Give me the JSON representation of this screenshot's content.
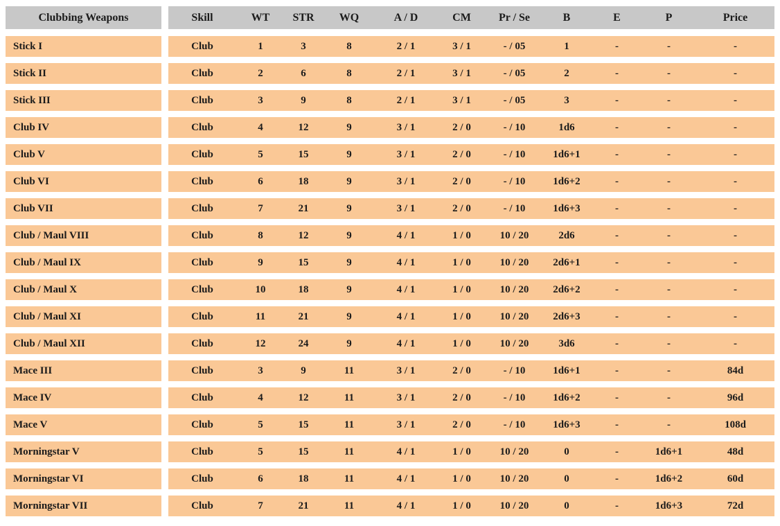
{
  "colors": {
    "page_bg": "#ffffff",
    "header_bg": "#c8c8c8",
    "row_bg": "#fac896",
    "text": "#1b1b1b"
  },
  "table": {
    "name_header": "Clubbing Weapons",
    "columns": [
      {
        "key": "skill",
        "label": "Skill"
      },
      {
        "key": "wt",
        "label": "WT"
      },
      {
        "key": "str",
        "label": "STR"
      },
      {
        "key": "wq",
        "label": "WQ"
      },
      {
        "key": "ad",
        "label": "A / D"
      },
      {
        "key": "cm",
        "label": "CM"
      },
      {
        "key": "prse",
        "label": "Pr / Se"
      },
      {
        "key": "b",
        "label": "B"
      },
      {
        "key": "e",
        "label": "E"
      },
      {
        "key": "p",
        "label": "P"
      },
      {
        "key": "price",
        "label": "Price"
      }
    ],
    "rows": [
      {
        "name": "Stick I",
        "values": [
          "Club",
          "1",
          "3",
          "8",
          "2 / 1",
          "3 / 1",
          "- / 05",
          "1",
          "-",
          "-",
          "-"
        ]
      },
      {
        "name": "Stick II",
        "values": [
          "Club",
          "2",
          "6",
          "8",
          "2 / 1",
          "3 / 1",
          "- / 05",
          "2",
          "-",
          "-",
          "-"
        ]
      },
      {
        "name": "Stick III",
        "values": [
          "Club",
          "3",
          "9",
          "8",
          "2 / 1",
          "3 / 1",
          "- / 05",
          "3",
          "-",
          "-",
          "-"
        ]
      },
      {
        "name": "Club IV",
        "values": [
          "Club",
          "4",
          "12",
          "9",
          "3 / 1",
          "2 / 0",
          "- / 10",
          "1d6",
          "-",
          "-",
          "-"
        ]
      },
      {
        "name": "Club V",
        "values": [
          "Club",
          "5",
          "15",
          "9",
          "3 / 1",
          "2 / 0",
          "- / 10",
          "1d6+1",
          "-",
          "-",
          "-"
        ]
      },
      {
        "name": "Club VI",
        "values": [
          "Club",
          "6",
          "18",
          "9",
          "3 / 1",
          "2 / 0",
          "- / 10",
          "1d6+2",
          "-",
          "-",
          "-"
        ]
      },
      {
        "name": "Club VII",
        "values": [
          "Club",
          "7",
          "21",
          "9",
          "3 / 1",
          "2 / 0",
          "- / 10",
          "1d6+3",
          "-",
          "-",
          "-"
        ]
      },
      {
        "name": "Club / Maul VIII",
        "values": [
          "Club",
          "8",
          "12",
          "9",
          "4 / 1",
          "1 / 0",
          "10 / 20",
          "2d6",
          "-",
          "-",
          "-"
        ]
      },
      {
        "name": "Club / Maul IX",
        "values": [
          "Club",
          "9",
          "15",
          "9",
          "4 / 1",
          "1 / 0",
          "10 / 20",
          "2d6+1",
          "-",
          "-",
          "-"
        ]
      },
      {
        "name": "Club / Maul X",
        "values": [
          "Club",
          "10",
          "18",
          "9",
          "4 / 1",
          "1 / 0",
          "10 / 20",
          "2d6+2",
          "-",
          "-",
          "-"
        ]
      },
      {
        "name": "Club / Maul XI",
        "values": [
          "Club",
          "11",
          "21",
          "9",
          "4 / 1",
          "1 / 0",
          "10 / 20",
          "2d6+3",
          "-",
          "-",
          "-"
        ]
      },
      {
        "name": "Club / Maul XII",
        "values": [
          "Club",
          "12",
          "24",
          "9",
          "4 / 1",
          "1 / 0",
          "10 / 20",
          "3d6",
          "-",
          "-",
          "-"
        ]
      },
      {
        "name": "Mace III",
        "values": [
          "Club",
          "3",
          "9",
          "11",
          "3 / 1",
          "2 / 0",
          "- / 10",
          "1d6+1",
          "-",
          "-",
          "84d"
        ]
      },
      {
        "name": "Mace IV",
        "values": [
          "Club",
          "4",
          "12",
          "11",
          "3 / 1",
          "2 / 0",
          "- / 10",
          "1d6+2",
          "-",
          "-",
          "96d"
        ]
      },
      {
        "name": "Mace V",
        "values": [
          "Club",
          "5",
          "15",
          "11",
          "3 / 1",
          "2 / 0",
          "- / 10",
          "1d6+3",
          "-",
          "-",
          "108d"
        ]
      },
      {
        "name": "Morningstar V",
        "values": [
          "Club",
          "5",
          "15",
          "11",
          "4 / 1",
          "1 / 0",
          "10 / 20",
          "0",
          "-",
          "1d6+1",
          "48d"
        ]
      },
      {
        "name": "Morningstar VI",
        "values": [
          "Club",
          "6",
          "18",
          "11",
          "4 / 1",
          "1 / 0",
          "10 / 20",
          "0",
          "-",
          "1d6+2",
          "60d"
        ]
      },
      {
        "name": "Morningstar VII",
        "values": [
          "Club",
          "7",
          "21",
          "11",
          "4 / 1",
          "1 / 0",
          "10 / 20",
          "0",
          "-",
          "1d6+3",
          "72d"
        ]
      }
    ]
  }
}
